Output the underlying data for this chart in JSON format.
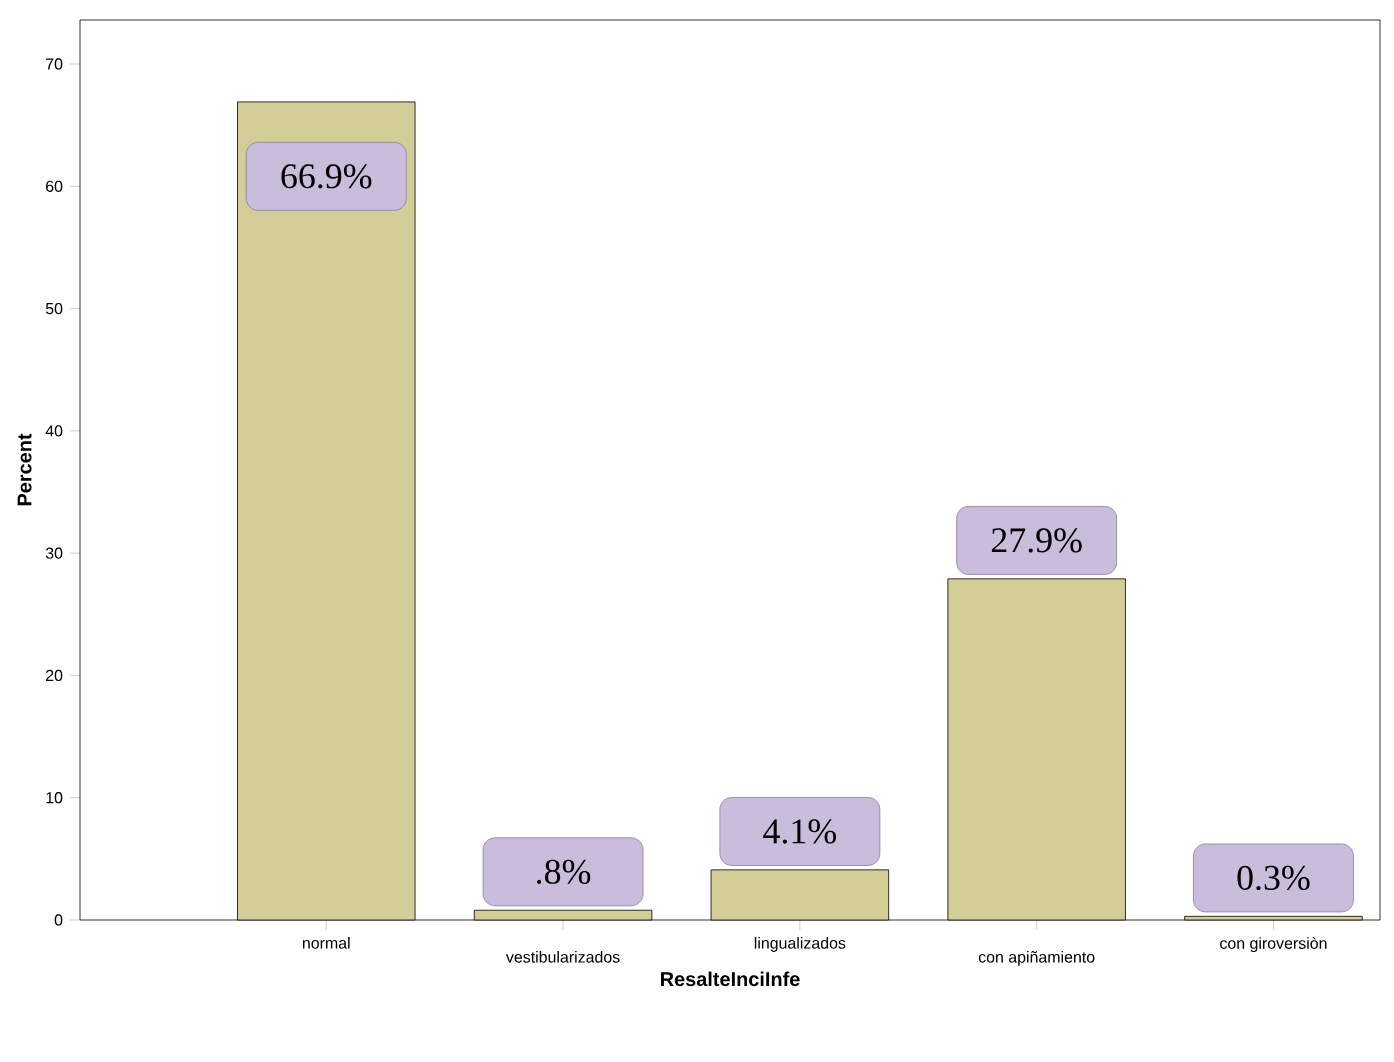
{
  "chart_data": {
    "type": "bar",
    "xlabel": "ResalteInciInfe",
    "ylabel": "Percent",
    "categories": [
      "normal",
      "vestibularizados",
      "lingualizados",
      "con apiñamiento",
      "con giroversiòn"
    ],
    "values": [
      66.9,
      0.8,
      4.1,
      27.9,
      0.3
    ],
    "value_labels": [
      "66.9%",
      ".8%",
      "4.1%",
      "27.9%",
      "0.3%"
    ],
    "color": "#d3cd97",
    "ylim": [
      0,
      73.6
    ],
    "yticks": [
      0,
      10,
      20,
      30,
      40,
      50,
      60,
      70
    ]
  }
}
